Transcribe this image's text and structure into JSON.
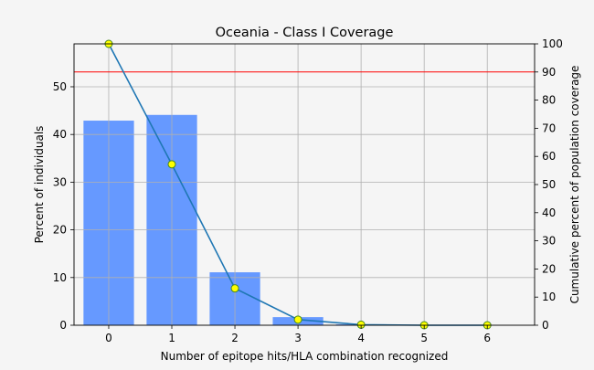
{
  "chart_data": {
    "type": "bar",
    "title": "Oceania - Class I Coverage",
    "xlabel": "Number of epitope hits/HLA combination recognized",
    "ylabel": "Percent of individuals",
    "y2label": "Cumulative percent of population coverage",
    "categories": [
      0,
      1,
      2,
      3,
      4,
      5,
      6
    ],
    "series": [
      {
        "values": [
          42.9,
          44.1,
          11.1,
          1.7,
          0.2,
          0.0,
          0.0
        ],
        "axis": "left",
        "kind": "bar",
        "color": "#6699ff"
      },
      {
        "values": [
          100,
          57.2,
          13.1,
          2.0,
          0.2,
          0.0,
          0.0
        ],
        "axis": "right",
        "kind": "line",
        "color": "#1f77b4",
        "marker_face": "#ffff00",
        "marker_edge": "#4a8a1e"
      }
    ],
    "reference_line": {
      "axis": "right",
      "value": 90,
      "color": "#ff0000"
    },
    "xlim": [
      -0.55,
      6.75
    ],
    "ylim": [
      0,
      59
    ],
    "y2lim": [
      0,
      100
    ],
    "yticks": [
      0,
      10,
      20,
      30,
      40,
      50
    ],
    "y2ticks": [
      0,
      10,
      20,
      30,
      40,
      50,
      60,
      70,
      80,
      90,
      100
    ],
    "xticks": [
      0,
      1,
      2,
      3,
      4,
      5,
      6
    ],
    "grid": true,
    "legend": "none",
    "background": "#f5f5f5",
    "grid_color": "#b0b0b0"
  }
}
